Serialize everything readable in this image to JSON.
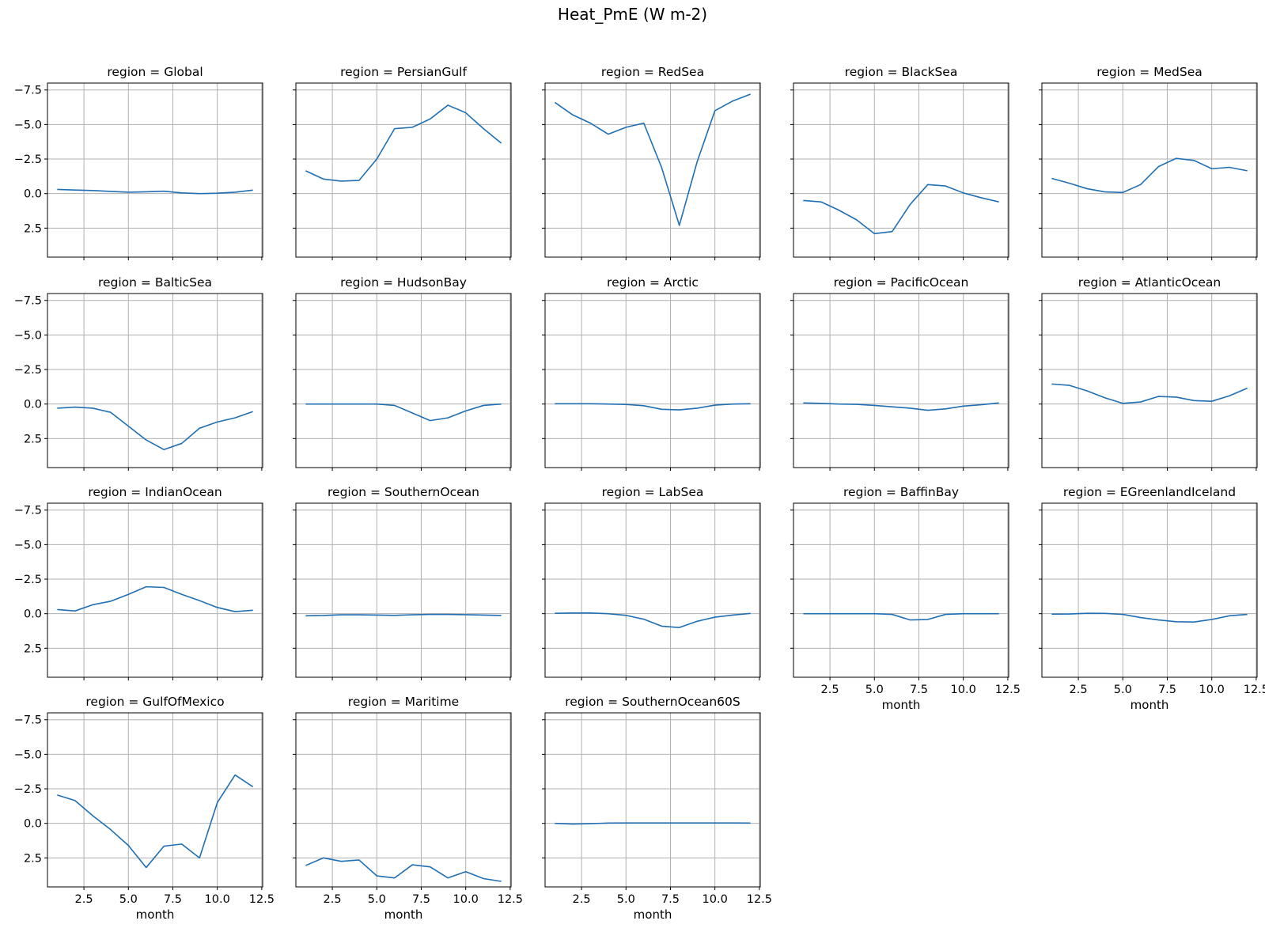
{
  "figure": {
    "title": "Heat_PmE (W m-2)",
    "line_color": "#1f6fb2",
    "grid_color": "#b0b0b0"
  },
  "chart_data": {
    "type": "line",
    "layout": {
      "rows": 4,
      "cols": 5
    },
    "x": [
      1,
      2,
      3,
      4,
      5,
      6,
      7,
      8,
      9,
      10,
      11,
      12
    ],
    "xlabel": "month",
    "ylabel": "",
    "xlim": [
      0.45,
      12.55
    ],
    "ylim": [
      4.6,
      -8.0
    ],
    "y_inverted": true,
    "grid": true,
    "xticks": [
      2.5,
      5.0,
      7.5,
      10.0,
      12.5
    ],
    "xtick_labels": [
      "2.5",
      "5.0",
      "7.5",
      "10.0",
      "12.5"
    ],
    "yticks": [
      -7.5,
      -5.0,
      -2.5,
      0.0,
      2.5
    ],
    "ytick_labels": [
      "−7.5",
      "−5.0",
      "−2.5",
      "0.0",
      "2.5"
    ],
    "panels": [
      {
        "title": "region = Global",
        "values": [
          -0.3,
          -0.26,
          -0.22,
          -0.16,
          -0.1,
          -0.13,
          -0.17,
          -0.05,
          0.0,
          -0.03,
          -0.1,
          -0.25
        ]
      },
      {
        "title": "region = PersianGulf",
        "values": [
          -1.65,
          -1.05,
          -0.9,
          -0.95,
          -2.5,
          -4.7,
          -4.8,
          -5.4,
          -6.4,
          -5.85,
          -4.7,
          -3.65
        ]
      },
      {
        "title": "region = RedSea",
        "values": [
          -6.6,
          -5.7,
          -5.1,
          -4.3,
          -4.8,
          -5.1,
          -1.9,
          2.3,
          -2.3,
          -6.0,
          -6.7,
          -7.2
        ]
      },
      {
        "title": "region = BlackSea",
        "values": [
          0.5,
          0.6,
          1.2,
          1.9,
          2.9,
          2.75,
          0.8,
          -0.65,
          -0.55,
          -0.05,
          0.3,
          0.6
        ]
      },
      {
        "title": "region = MedSea",
        "values": [
          -1.1,
          -0.75,
          -0.35,
          -0.12,
          -0.08,
          -0.65,
          -1.95,
          -2.55,
          -2.4,
          -1.8,
          -1.9,
          -1.65
        ]
      },
      {
        "title": "region = BalticSea",
        "values": [
          0.3,
          0.22,
          0.3,
          0.6,
          1.6,
          2.6,
          3.3,
          2.85,
          1.75,
          1.3,
          1.0,
          0.55
        ]
      },
      {
        "title": "region = HudsonBay",
        "values": [
          0.0,
          0.0,
          0.0,
          0.0,
          0.0,
          0.1,
          0.65,
          1.2,
          1.0,
          0.5,
          0.1,
          0.0
        ]
      },
      {
        "title": "region = Arctic",
        "values": [
          -0.02,
          -0.02,
          -0.02,
          0.0,
          0.03,
          0.12,
          0.38,
          0.42,
          0.3,
          0.08,
          0.0,
          -0.02
        ]
      },
      {
        "title": "region = PacificOcean",
        "values": [
          -0.08,
          -0.05,
          0.0,
          0.02,
          0.1,
          0.2,
          0.3,
          0.45,
          0.35,
          0.15,
          0.05,
          -0.08
        ]
      },
      {
        "title": "region = AtlanticOcean",
        "values": [
          -1.45,
          -1.35,
          -0.95,
          -0.45,
          -0.05,
          -0.15,
          -0.55,
          -0.5,
          -0.25,
          -0.2,
          -0.6,
          -1.15
        ]
      },
      {
        "title": "region = IndianOcean",
        "values": [
          -0.3,
          -0.2,
          -0.65,
          -0.9,
          -1.4,
          -1.95,
          -1.9,
          -1.4,
          -0.95,
          -0.45,
          -0.15,
          -0.25
        ]
      },
      {
        "title": "region = SouthernOcean",
        "values": [
          0.15,
          0.13,
          0.08,
          0.08,
          0.1,
          0.12,
          0.08,
          0.05,
          0.05,
          0.07,
          0.1,
          0.13
        ]
      },
      {
        "title": "region = LabSea",
        "values": [
          -0.03,
          -0.05,
          -0.05,
          0.0,
          0.12,
          0.4,
          0.9,
          1.0,
          0.55,
          0.25,
          0.1,
          -0.02
        ]
      },
      {
        "title": "region = BaffinBay",
        "values": [
          0.0,
          0.0,
          0.0,
          0.0,
          0.0,
          0.05,
          0.45,
          0.42,
          0.05,
          0.0,
          0.0,
          0.0
        ]
      },
      {
        "title": "region = EGreenlandIceland",
        "values": [
          0.03,
          0.02,
          -0.03,
          -0.02,
          0.05,
          0.28,
          0.45,
          0.58,
          0.6,
          0.42,
          0.15,
          0.05
        ]
      },
      {
        "title": "region = GulfOfMexico",
        "values": [
          -2.05,
          -1.65,
          -0.55,
          0.45,
          1.6,
          3.2,
          1.65,
          1.5,
          2.5,
          -1.5,
          -3.5,
          -2.65
        ]
      },
      {
        "title": "region = Maritime",
        "values": [
          3.05,
          2.5,
          2.75,
          2.65,
          3.8,
          3.95,
          3.0,
          3.15,
          3.95,
          3.5,
          4.0,
          4.2
        ]
      },
      {
        "title": "region = SouthernOcean60S",
        "values": [
          0.0,
          0.05,
          0.02,
          -0.02,
          -0.03,
          -0.03,
          -0.03,
          -0.03,
          -0.03,
          -0.03,
          -0.03,
          -0.02
        ]
      }
    ]
  }
}
